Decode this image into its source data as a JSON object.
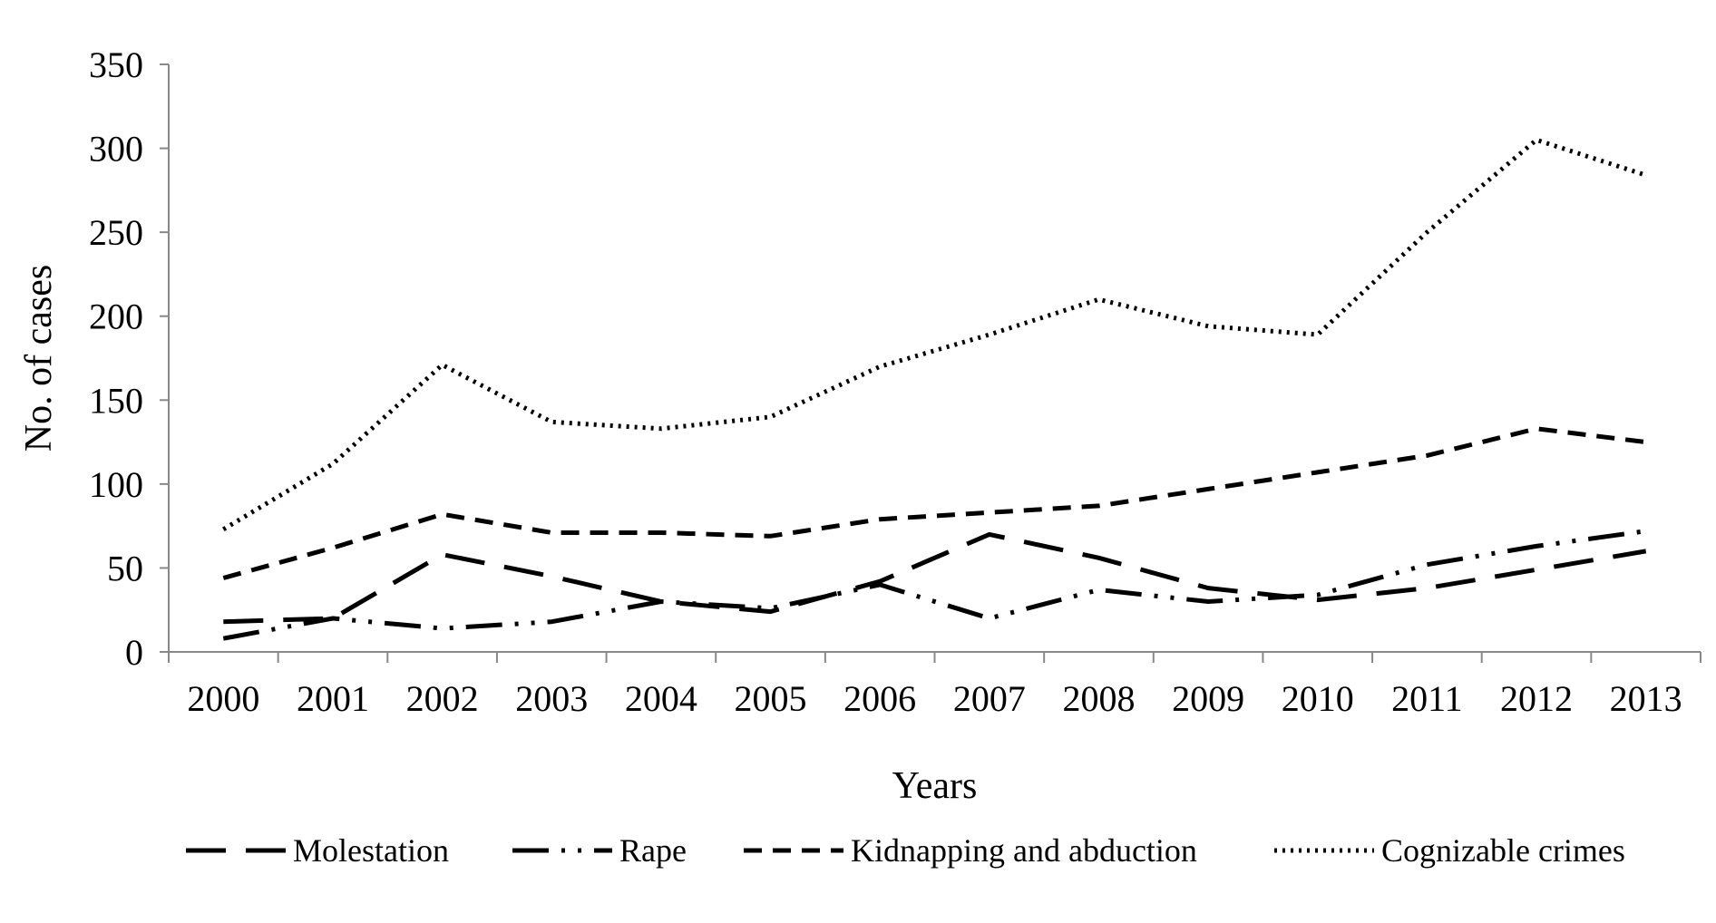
{
  "chart_data": {
    "type": "line",
    "title": "",
    "xlabel": "Years",
    "ylabel": "No. of cases",
    "ylim": [
      0,
      350
    ],
    "yticks": [
      0,
      50,
      100,
      150,
      200,
      250,
      300,
      350
    ],
    "categories": [
      "2000",
      "2001",
      "2002",
      "2003",
      "2004",
      "2005",
      "2006",
      "2007",
      "2008",
      "2009",
      "2010",
      "2011",
      "2012",
      "2013"
    ],
    "grid": false,
    "legend_position": "bottom",
    "series": [
      {
        "name": "Molestation",
        "values": [
          18,
          20,
          58,
          45,
          30,
          24,
          42,
          70,
          56,
          38,
          31,
          38,
          49,
          60
        ],
        "color": "#000000",
        "dash": "long-dash"
      },
      {
        "name": "Rape",
        "values": [
          8,
          20,
          14,
          18,
          30,
          26,
          40,
          20,
          37,
          30,
          34,
          52,
          63,
          72
        ],
        "color": "#000000",
        "dash": "dash-dot-dot"
      },
      {
        "name": "Kidnapping and abduction",
        "values": [
          44,
          62,
          82,
          71,
          71,
          69,
          79,
          83,
          87,
          97,
          107,
          117,
          133,
          125
        ],
        "color": "#000000",
        "dash": "dash"
      },
      {
        "name": "Cognizable crimes",
        "values": [
          73,
          112,
          171,
          137,
          133,
          140,
          170,
          189,
          210,
          194,
          189,
          250,
          305,
          284
        ],
        "color": "#000000",
        "dash": "dotted"
      }
    ]
  }
}
